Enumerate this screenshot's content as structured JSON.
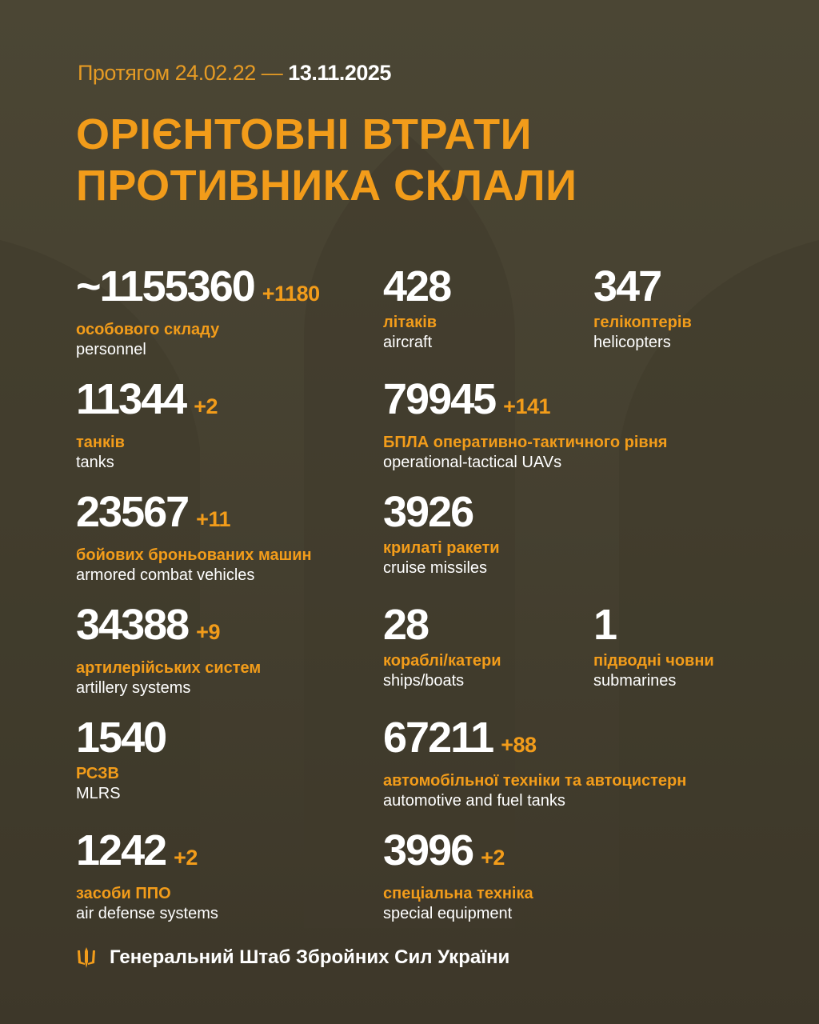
{
  "header": {
    "period_prefix": "Протягом 24.02.22 —",
    "period_end": "13.11.2025",
    "title_line1": "ОРІЄНТОВНІ ВТРАТИ",
    "title_line2": "ПРОТИВНИКА СКЛАЛИ"
  },
  "colors": {
    "accent": "#f29c1a",
    "background": "#464131",
    "text": "#ffffff"
  },
  "stats": [
    {
      "value": "~1155360",
      "delta": "+1180",
      "ua": "особового складу",
      "en": "personnel"
    },
    {
      "value": "428",
      "delta": "",
      "ua": "літаків",
      "en": "aircraft"
    },
    {
      "value": "347",
      "delta": "",
      "ua": "гелікоптерів",
      "en": "helicopters"
    },
    {
      "value": "11344",
      "delta": "+2",
      "ua": "танків",
      "en": "tanks"
    },
    {
      "value": "79945",
      "delta": "+141",
      "ua": "БПЛА оперативно-тактичного рівня",
      "en": "operational-tactical UAVs"
    },
    {
      "value": "23567",
      "delta": "+11",
      "ua": "бойових броньованих машин",
      "en": "armored combat vehicles"
    },
    {
      "value": "3926",
      "delta": "",
      "ua": "крилаті ракети",
      "en": "cruise missiles"
    },
    {
      "value": "34388",
      "delta": "+9",
      "ua": "артилерійських систем",
      "en": "artillery systems"
    },
    {
      "value": "28",
      "delta": "",
      "ua": "кораблі/катери",
      "en": "ships/boats"
    },
    {
      "value": "1",
      "delta": "",
      "ua": "підводні човни",
      "en": "submarines"
    },
    {
      "value": "1540",
      "delta": "",
      "ua": "РСЗВ",
      "en": "MLRS"
    },
    {
      "value": "67211",
      "delta": "+88",
      "ua": "автомобільної техніки та автоцистерн",
      "en": "automotive and fuel tanks"
    },
    {
      "value": "1242",
      "delta": "+2",
      "ua": "засоби ППО",
      "en": "air defense systems"
    },
    {
      "value": "3996",
      "delta": "+2",
      "ua": "спеціальна техніка",
      "en": "special equipment"
    }
  ],
  "footer": {
    "icon": "trident-icon",
    "text": "Генеральний Штаб Збройних Сил України"
  }
}
